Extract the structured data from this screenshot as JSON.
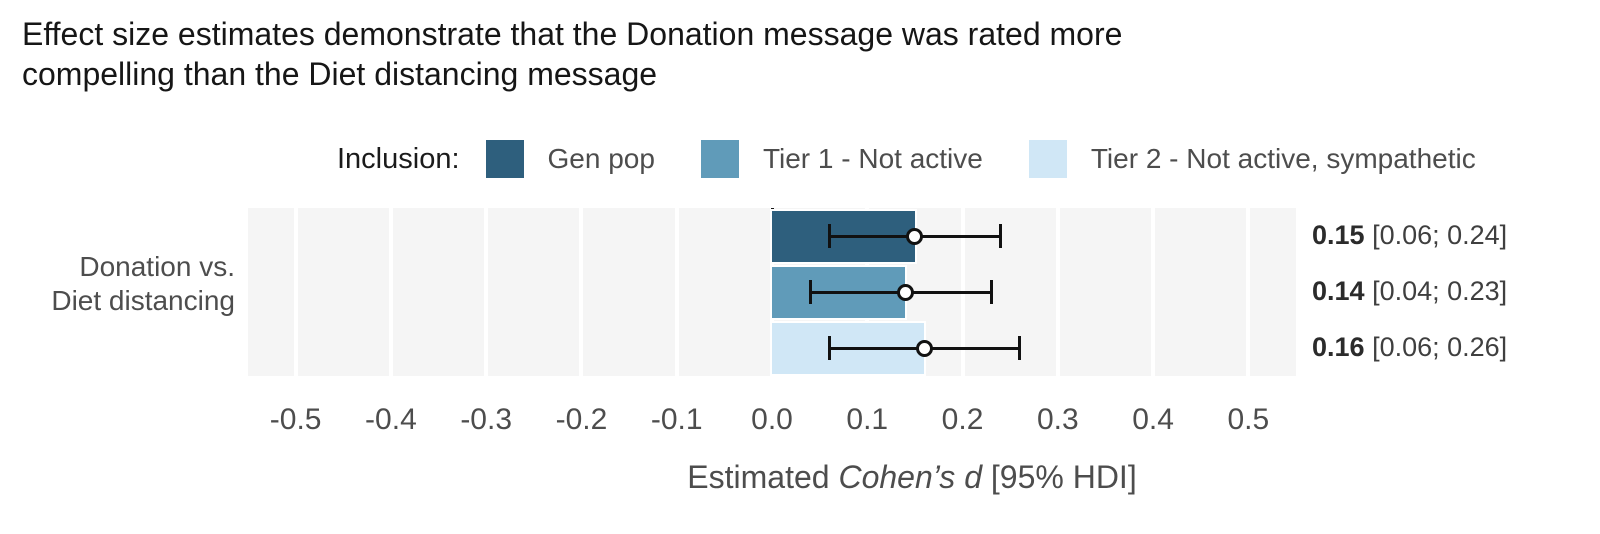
{
  "title": {
    "line1": "Effect size estimates demonstrate that the Donation message was rated more",
    "line2": "compelling than the Diet distancing message"
  },
  "legend": {
    "title": "Inclusion:",
    "items": [
      {
        "label": "Gen pop",
        "color": "#2e5f7d"
      },
      {
        "label": "Tier 1 - Not active",
        "color": "#609bb9"
      },
      {
        "label": "Tier 2 - Not active, sympathetic",
        "color": "#d0e7f6"
      }
    ]
  },
  "chart_data": {
    "type": "bar",
    "orientation": "horizontal",
    "title": "Effect size estimates demonstrate that the Donation message was rated more compelling than the Diet distancing message",
    "categories": [
      "Donation vs. Diet distancing"
    ],
    "category_label": {
      "line1": "Donation vs.",
      "line2": "Diet distancing"
    },
    "series": [
      {
        "name": "Gen pop",
        "color": "#2e5f7d",
        "estimate": 0.15,
        "hdi_low": 0.06,
        "hdi_high": 0.24,
        "value_label": "0.15",
        "hdi_label": "[0.06; 0.24]"
      },
      {
        "name": "Tier 1 - Not active",
        "color": "#609bb9",
        "estimate": 0.14,
        "hdi_low": 0.04,
        "hdi_high": 0.23,
        "value_label": "0.14",
        "hdi_label": "[0.04; 0.23]"
      },
      {
        "name": "Tier 2 - Not active, sympathetic",
        "color": "#d0e7f6",
        "estimate": 0.16,
        "hdi_low": 0.06,
        "hdi_high": 0.26,
        "value_label": "0.16",
        "hdi_label": "[0.06; 0.26]"
      }
    ],
    "xlabel": "Estimated Cohen’s d [95% HDI]",
    "xlabel_parts": {
      "prefix": "Estimated ",
      "italic": "Cohen’s d",
      "suffix": " [95% HDI]"
    },
    "xlim": [
      -0.55,
      0.55
    ],
    "xticks": [
      -0.5,
      -0.4,
      -0.3,
      -0.2,
      -0.1,
      0.0,
      0.1,
      0.2,
      0.3,
      0.4,
      0.5
    ],
    "zero_reference_line": 0.0,
    "grid": true,
    "legend_position": "top",
    "theme": {
      "panel_background": "#f5f5f5",
      "gridline_color": "#ffffff",
      "zero_line_color": "#161616",
      "errorbar_color": "#111111",
      "title_color": "#161616",
      "axis_text_color": "#4d4d4d",
      "value_text_color": "#2b2b2b"
    }
  }
}
